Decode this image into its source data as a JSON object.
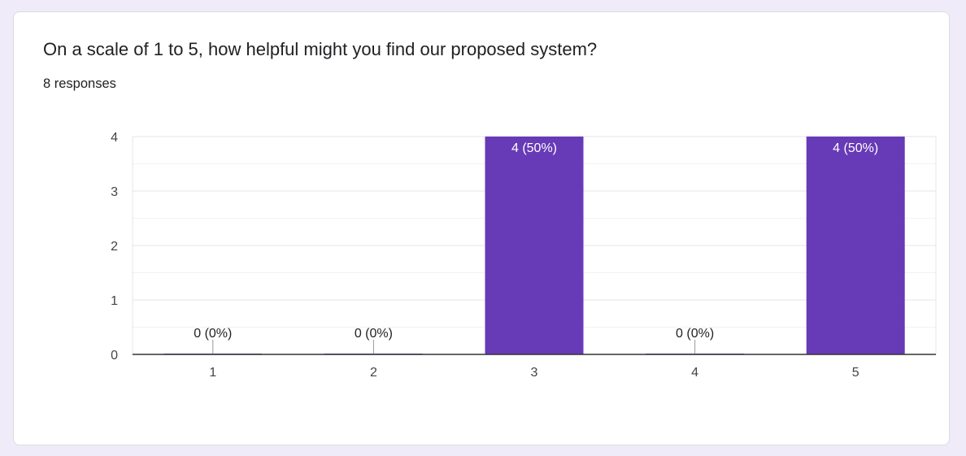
{
  "question": {
    "title": "On a scale of 1 to 5, how helpful might you find our proposed system?",
    "response_count": "8 responses"
  },
  "chart_data": {
    "type": "bar",
    "categories": [
      "1",
      "2",
      "3",
      "4",
      "5"
    ],
    "values": [
      0,
      0,
      4,
      0,
      4
    ],
    "data_labels": [
      "0 (0%)",
      "0 (0%)",
      "4 (50%)",
      "0 (0%)",
      "4 (50%)"
    ],
    "yticks": [
      0,
      1,
      2,
      3,
      4
    ],
    "ylim": [
      0,
      4
    ],
    "grid": true,
    "legend": "none",
    "bar_color": "#673ab7",
    "inside_label_color": "#ffffff",
    "outside_label_color": "#222222",
    "gridline_color": "#e6e6e6",
    "axis_color": "#333333"
  }
}
